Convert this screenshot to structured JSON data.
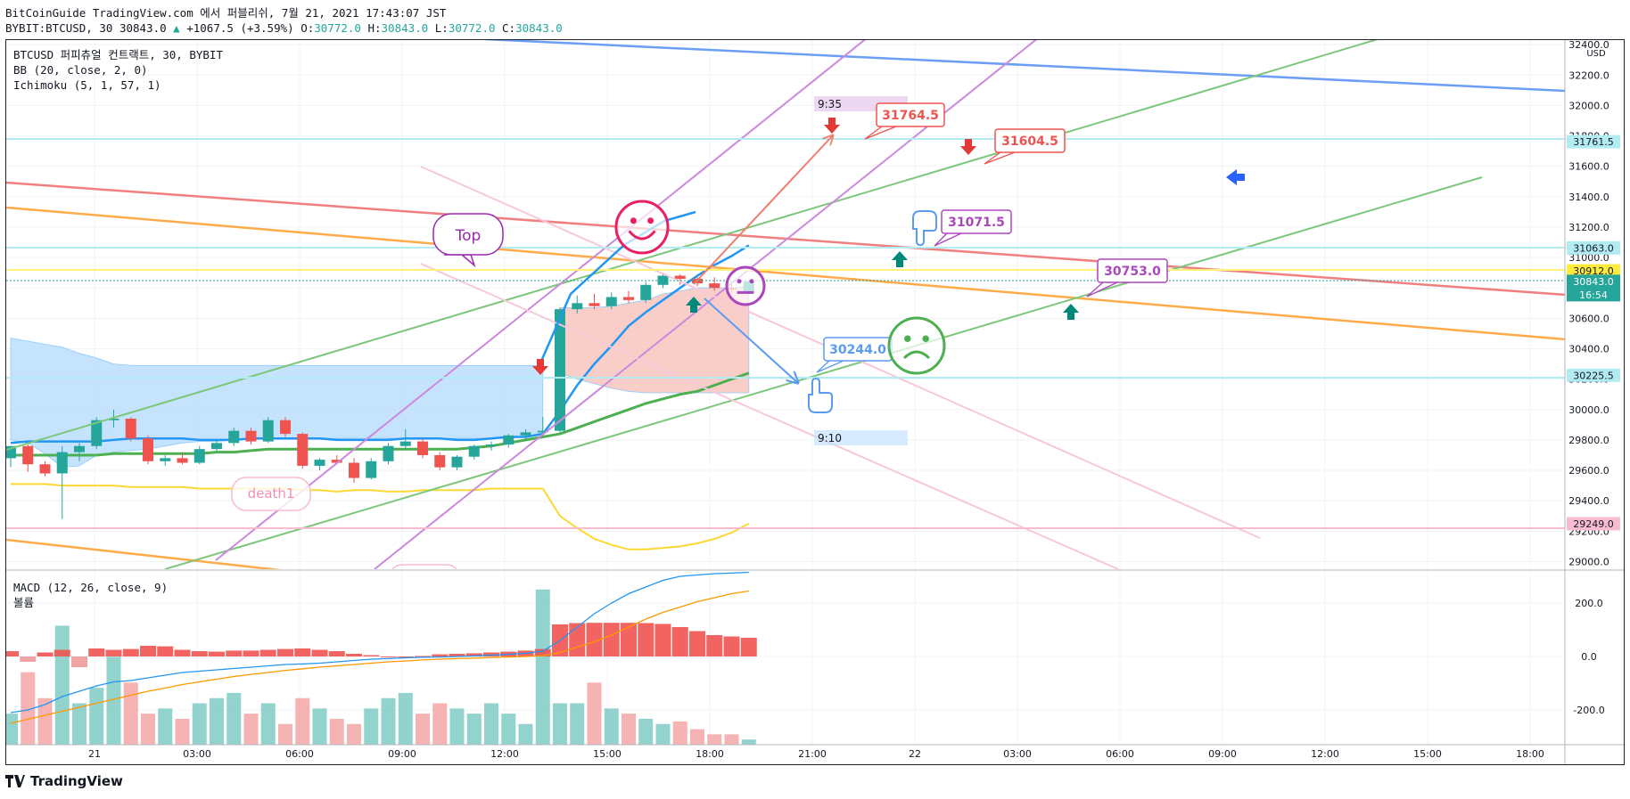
{
  "header": {
    "line1": "BitCoinGuide TradingView.com 에서 퍼블리쉬, 7월 21, 2021 17:43:07 JST",
    "symbol": "BYBIT:BTCUSD, 30",
    "last": "30843.0",
    "change": "+1067.5 (+3.59%)",
    "o_label": "O:",
    "o": "30772.0",
    "h_label": "H:",
    "h": "30843.0",
    "l_label": "L:",
    "l": "30772.0",
    "c_label": "C:",
    "c": "30843.0"
  },
  "legend": {
    "title": "BTCUSD 퍼피츄얼 컨트랙트, 30, BYBIT",
    "bb": "BB (20, close, 2, 0)",
    "ichimoku": "Ichimoku (5, 1, 57, 1)",
    "macd": "MACD (12, 26, close, 9)",
    "volume": "볼륨"
  },
  "brand": {
    "name": "TradingView"
  },
  "colors": {
    "up": "#26a69a",
    "down": "#ef5350",
    "bb_basis": "#2196f3",
    "bb_lower": "#fdd835",
    "cloud": "#bbdefb",
    "cloud_red": "#f8c6c0",
    "ichimoku_green": "#4caf50",
    "macd": "#2196f3",
    "signal": "#ff9800"
  },
  "chart_data": {
    "type": "candlestick",
    "currency": "USD",
    "x_ticks": [
      "21",
      "03:00",
      "06:00",
      "09:00",
      "12:00",
      "15:00",
      "18:00",
      "21:00",
      "22",
      "03:00",
      "06:00",
      "09:00",
      "12:00",
      "15:00",
      "18:00"
    ],
    "price_ticks": [
      "32400.0",
      "32200.0",
      "32000.0",
      "31800.0",
      "31600.0",
      "31400.0",
      "31200.0",
      "31000.0",
      "30800.0",
      "30600.0",
      "30400.0",
      "30200.0",
      "30000.0",
      "29800.0",
      "29600.0",
      "29400.0",
      "29200.0",
      "29000.0"
    ],
    "y_range": [
      28950,
      32430
    ],
    "price_labels": [
      {
        "text": "31761.5",
        "value": 31761.5,
        "bg": "#b2ebf2",
        "fg": "#131722"
      },
      {
        "text": "31063.0",
        "value": 31063,
        "bg": "#b2ebf2",
        "fg": "#131722"
      },
      {
        "text": "30912.0",
        "value": 30912,
        "bg": "#ffeb3b",
        "fg": "#131722"
      },
      {
        "text": "30843.0",
        "value": 30843,
        "bg": "#26a69a",
        "fg": "#ffffff",
        "sub": "16:54"
      },
      {
        "text": "30225.5",
        "value": 30225.5,
        "bg": "#b2ebf2",
        "fg": "#131722"
      },
      {
        "text": "29249.0",
        "value": 29249,
        "bg": "#f8bbd0",
        "fg": "#131722"
      }
    ],
    "candles": [
      {
        "o": 29680,
        "h": 29760,
        "l": 29620,
        "c": 29760
      },
      {
        "o": 29760,
        "h": 29770,
        "l": 29590,
        "c": 29640
      },
      {
        "o": 29640,
        "h": 29660,
        "l": 29560,
        "c": 29580
      },
      {
        "o": 29580,
        "h": 29760,
        "l": 29280,
        "c": 29720
      },
      {
        "o": 29720,
        "h": 29780,
        "l": 29660,
        "c": 29760
      },
      {
        "o": 29760,
        "h": 29950,
        "l": 29740,
        "c": 29930
      },
      {
        "o": 29930,
        "h": 30000,
        "l": 29880,
        "c": 29940
      },
      {
        "o": 29940,
        "h": 29950,
        "l": 29790,
        "c": 29810
      },
      {
        "o": 29810,
        "h": 29830,
        "l": 29640,
        "c": 29660
      },
      {
        "o": 29660,
        "h": 29700,
        "l": 29630,
        "c": 29680
      },
      {
        "o": 29680,
        "h": 29720,
        "l": 29640,
        "c": 29650
      },
      {
        "o": 29650,
        "h": 29760,
        "l": 29640,
        "c": 29740
      },
      {
        "o": 29740,
        "h": 29800,
        "l": 29720,
        "c": 29780
      },
      {
        "o": 29780,
        "h": 29880,
        "l": 29760,
        "c": 29860
      },
      {
        "o": 29860,
        "h": 29880,
        "l": 29770,
        "c": 29790
      },
      {
        "o": 29790,
        "h": 29950,
        "l": 29780,
        "c": 29930
      },
      {
        "o": 29930,
        "h": 29950,
        "l": 29820,
        "c": 29840
      },
      {
        "o": 29840,
        "h": 29850,
        "l": 29610,
        "c": 29630
      },
      {
        "o": 29630,
        "h": 29680,
        "l": 29600,
        "c": 29670
      },
      {
        "o": 29670,
        "h": 29700,
        "l": 29640,
        "c": 29650
      },
      {
        "o": 29650,
        "h": 29680,
        "l": 29520,
        "c": 29550
      },
      {
        "o": 29550,
        "h": 29680,
        "l": 29540,
        "c": 29660
      },
      {
        "o": 29660,
        "h": 29780,
        "l": 29640,
        "c": 29760
      },
      {
        "o": 29760,
        "h": 29870,
        "l": 29740,
        "c": 29790
      },
      {
        "o": 29790,
        "h": 29810,
        "l": 29680,
        "c": 29700
      },
      {
        "o": 29700,
        "h": 29720,
        "l": 29600,
        "c": 29620
      },
      {
        "o": 29620,
        "h": 29700,
        "l": 29600,
        "c": 29690
      },
      {
        "o": 29690,
        "h": 29770,
        "l": 29670,
        "c": 29760
      },
      {
        "o": 29760,
        "h": 29790,
        "l": 29730,
        "c": 29770
      },
      {
        "o": 29770,
        "h": 29840,
        "l": 29750,
        "c": 29830
      },
      {
        "o": 29830,
        "h": 29870,
        "l": 29800,
        "c": 29850
      },
      {
        "o": 29850,
        "h": 29950,
        "l": 29830,
        "c": 29860
      },
      {
        "o": 29860,
        "h": 30670,
        "l": 29850,
        "c": 30660
      },
      {
        "o": 30660,
        "h": 30750,
        "l": 30630,
        "c": 30700
      },
      {
        "o": 30700,
        "h": 30760,
        "l": 30660,
        "c": 30680
      },
      {
        "o": 30680,
        "h": 30770,
        "l": 30660,
        "c": 30740
      },
      {
        "o": 30740,
        "h": 30780,
        "l": 30700,
        "c": 30720
      },
      {
        "o": 30720,
        "h": 30840,
        "l": 30700,
        "c": 30820
      },
      {
        "o": 30820,
        "h": 30900,
        "l": 30800,
        "c": 30880
      },
      {
        "o": 30880,
        "h": 30890,
        "l": 30820,
        "c": 30860
      },
      {
        "o": 30860,
        "h": 30870,
        "l": 30810,
        "c": 30830
      },
      {
        "o": 30830,
        "h": 30870,
        "l": 30780,
        "c": 30800
      },
      {
        "o": 30800,
        "h": 30840,
        "l": 30770,
        "c": 30790
      },
      {
        "o": 30772,
        "h": 30843,
        "l": 30772,
        "c": 30843
      }
    ],
    "bb_basis": [
      29780,
      29790,
      29790,
      29790,
      29790,
      29790,
      29800,
      29810,
      29810,
      29810,
      29810,
      29800,
      29800,
      29800,
      29810,
      29810,
      29810,
      29810,
      29810,
      29800,
      29800,
      29800,
      29800,
      29810,
      29810,
      29810,
      29800,
      29800,
      29810,
      29820,
      29820,
      29840,
      29990,
      30160,
      30300,
      30420,
      30550,
      30640,
      30720,
      30800,
      30880,
      30950,
      31010,
      31080
    ],
    "bb_lower": [
      29510,
      29510,
      29510,
      29500,
      29500,
      29500,
      29500,
      29490,
      29490,
      29490,
      29490,
      29480,
      29480,
      29480,
      29480,
      29480,
      29480,
      29470,
      29470,
      29460,
      29470,
      29470,
      29460,
      29460,
      29470,
      29470,
      29470,
      29470,
      29480,
      29480,
      29480,
      29480,
      29300,
      29220,
      29150,
      29110,
      29080,
      29080,
      29090,
      29100,
      29120,
      29150,
      29190,
      29250
    ],
    "ichimoku_line": [
      29700,
      29700,
      29700,
      29700,
      29700,
      29700,
      29710,
      29710,
      29710,
      29710,
      29710,
      29710,
      29720,
      29720,
      29730,
      29740,
      29740,
      29740,
      29740,
      29740,
      29740,
      29740,
      29740,
      29740,
      29740,
      29740,
      29740,
      29750,
      29760,
      29780,
      29800,
      29820,
      29840,
      29880,
      29920,
      29960,
      30000,
      30040,
      30070,
      30100,
      30120,
      30160,
      30200,
      30240
    ],
    "cloud_top": [
      30470,
      30450,
      30430,
      30410,
      30370,
      30340,
      30300,
      30290,
      30290,
      30290,
      30290,
      30290,
      30290,
      30290,
      30290,
      30290,
      30290,
      30290,
      30290,
      30290,
      30290,
      30290,
      30290,
      30290,
      30290,
      30290,
      30290,
      30290,
      30290,
      30290,
      30290,
      30290,
      30670,
      30670,
      30670,
      30680,
      30700,
      30720,
      30760,
      30780,
      30800,
      30800,
      30800,
      30810
    ],
    "cloud_bottom": [
      29800,
      29780,
      29710,
      29620,
      29630,
      29700,
      29720,
      29730,
      29740,
      29760,
      29780,
      29790,
      29790,
      29800,
      29810,
      29810,
      29810,
      29810,
      29810,
      29810,
      29810,
      29810,
      29810,
      29810,
      29810,
      29810,
      29810,
      29810,
      29810,
      29810,
      29820,
      29850,
      30240,
      30200,
      30170,
      30140,
      30120,
      30110,
      30110,
      30110,
      30110,
      30110,
      30110,
      30110
    ],
    "macd_ticks": [
      "200.0",
      "0.0",
      "-200.0"
    ],
    "macd_range": [
      -330,
      320
    ],
    "macd_hist": [
      20,
      -20,
      15,
      25,
      -40,
      30,
      25,
      28,
      40,
      38,
      25,
      20,
      18,
      22,
      22,
      25,
      28,
      30,
      25,
      20,
      10,
      5,
      0,
      0,
      2,
      8,
      10,
      12,
      15,
      18,
      22,
      28,
      120,
      125,
      126,
      126,
      126,
      125,
      122,
      110,
      95,
      80,
      75,
      70
    ],
    "volume": [
      60,
      140,
      90,
      230,
      80,
      110,
      170,
      120,
      60,
      70,
      50,
      80,
      90,
      100,
      60,
      80,
      40,
      90,
      70,
      50,
      40,
      70,
      90,
      100,
      60,
      80,
      70,
      60,
      80,
      60,
      40,
      300,
      80,
      80,
      120,
      70,
      60,
      50,
      40,
      45,
      30,
      20,
      20,
      10
    ],
    "macd_line": [
      -210,
      -200,
      -180,
      -150,
      -130,
      -110,
      -95,
      -90,
      -80,
      -70,
      -60,
      -55,
      -50,
      -45,
      -40,
      -35,
      -30,
      -28,
      -25,
      -20,
      -15,
      -10,
      -8,
      -5,
      -3,
      -2,
      0,
      2,
      5,
      8,
      12,
      20,
      60,
      110,
      160,
      200,
      235,
      260,
      285,
      300,
      305,
      310,
      312,
      315
    ],
    "signal_line": [
      -250,
      -235,
      -220,
      -205,
      -190,
      -175,
      -160,
      -145,
      -130,
      -118,
      -105,
      -95,
      -85,
      -75,
      -67,
      -60,
      -52,
      -46,
      -40,
      -35,
      -30,
      -25,
      -20,
      -17,
      -13,
      -10,
      -8,
      -6,
      -4,
      -2,
      0,
      3,
      15,
      35,
      55,
      80,
      110,
      140,
      165,
      185,
      205,
      220,
      235,
      245
    ]
  },
  "annotations": {
    "top": "Top",
    "death": "death1",
    "time_935": "9:35",
    "time_910": "9:10",
    "callout1": "31764.5",
    "callout2": "31604.5",
    "callout3": "31071.5",
    "callout4": "30753.0",
    "callout5": "30244.0"
  }
}
